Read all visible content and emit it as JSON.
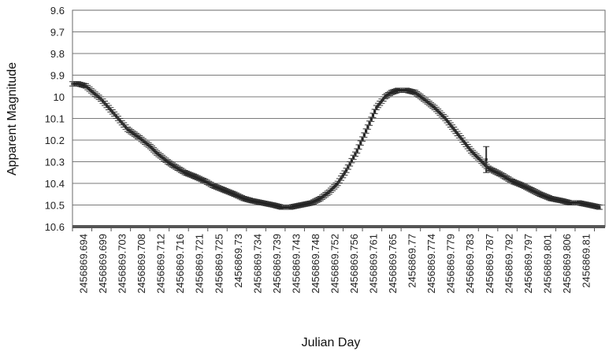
{
  "chart_data": {
    "type": "scatter",
    "title": "",
    "xlabel": "Julian Day",
    "ylabel": "Apparent Magnitude",
    "y_axis_inverted": true,
    "ylim": [
      9.6,
      10.6
    ],
    "y_ticks": [
      "9.6",
      "9.7",
      "9.8",
      "9.9",
      "10",
      "10.1",
      "10.2",
      "10.3",
      "10.4",
      "10.5",
      "10.6"
    ],
    "xlim": [
      2456869.6924,
      2456869.8161
    ],
    "x_tick_labels": [
      "2456869.694",
      "2456869.699",
      "2456869.703",
      "2456869.708",
      "2456869.712",
      "2456869.716",
      "2456869.721",
      "2456869.725",
      "2456869.73",
      "2456869.734",
      "2456869.739",
      "2456869.743",
      "2456869.748",
      "2456869.752",
      "2456869.756",
      "2456869.761",
      "2456869.765",
      "2456869.77",
      "2456869.774",
      "2456869.779",
      "2456869.783",
      "2456869.787",
      "2456869.792",
      "2456869.797",
      "2456869.801",
      "2456869.806",
      "2456869.81"
    ],
    "grid": {
      "horizontal": true,
      "vertical": false
    },
    "legend": "none",
    "marker_color": "#222222",
    "error_bar_color": "#333333",
    "series": [
      {
        "x": [
          2456869.6924,
          2456869.6937,
          2456869.6955,
          2456869.6972,
          2456869.699,
          2456869.7008,
          2456869.703,
          2456869.7052,
          2456869.708,
          2456869.7105,
          2456869.712,
          2456869.7145,
          2456869.716,
          2456869.7185,
          2456869.721,
          2456869.7232,
          2456869.725,
          2456869.7275,
          2456869.73,
          2456869.7322,
          2456869.734,
          2456869.7365,
          2456869.739,
          2456869.741,
          2456869.743,
          2456869.7455,
          2456869.748,
          2456869.75,
          2456869.752,
          2456869.754,
          2456869.756,
          2456869.7585,
          2456869.761,
          2456869.763,
          2456869.765,
          2456869.7665,
          2456869.768,
          2456869.77,
          2456869.772,
          2456869.774,
          2456869.7765,
          2456869.779,
          2456869.781,
          2456869.783,
          2456869.785,
          2456869.787,
          2456869.789,
          2456869.792,
          2456869.7945,
          2456869.797,
          2456869.799,
          2456869.801,
          2456869.8035,
          2456869.806,
          2456869.808,
          2456869.81,
          2456869.8125,
          2456869.8148
        ],
        "y": [
          9.94,
          9.94,
          9.95,
          9.98,
          10.01,
          10.05,
          10.1,
          10.15,
          10.19,
          10.23,
          10.26,
          10.3,
          10.32,
          10.35,
          10.37,
          10.39,
          10.41,
          10.43,
          10.45,
          10.47,
          10.48,
          10.49,
          10.5,
          10.51,
          10.51,
          10.5,
          10.49,
          10.47,
          10.44,
          10.4,
          10.34,
          10.25,
          10.14,
          10.05,
          10.0,
          9.98,
          9.97,
          9.97,
          9.98,
          10.01,
          10.05,
          10.1,
          10.15,
          10.2,
          10.25,
          10.29,
          10.33,
          10.36,
          10.39,
          10.41,
          10.43,
          10.45,
          10.47,
          10.48,
          10.49,
          10.49,
          10.5,
          10.51
        ],
        "err": [
          0.01,
          0.01,
          0.01,
          0.01,
          0.01,
          0.01,
          0.01,
          0.01,
          0.01,
          0.01,
          0.01,
          0.01,
          0.01,
          0.01,
          0.01,
          0.01,
          0.01,
          0.01,
          0.01,
          0.01,
          0.01,
          0.01,
          0.01,
          0.01,
          0.01,
          0.01,
          0.01,
          0.01,
          0.01,
          0.01,
          0.01,
          0.01,
          0.01,
          0.01,
          0.01,
          0.01,
          0.01,
          0.01,
          0.01,
          0.01,
          0.01,
          0.01,
          0.01,
          0.01,
          0.01,
          0.01,
          0.01,
          0.01,
          0.01,
          0.01,
          0.01,
          0.01,
          0.01,
          0.01,
          0.01,
          0.01,
          0.01,
          0.01
        ]
      },
      {
        "outlier": true,
        "x": [
          2456869.7885
        ],
        "y": [
          10.29
        ],
        "err": [
          0.06
        ]
      }
    ]
  }
}
